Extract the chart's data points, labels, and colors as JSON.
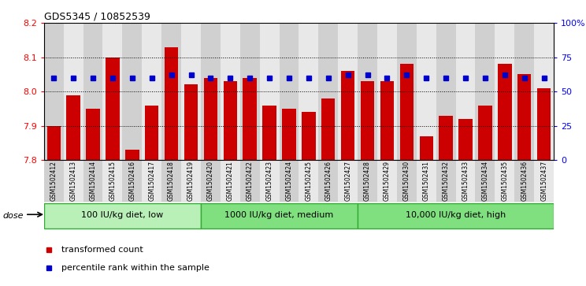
{
  "title": "GDS5345 / 10852539",
  "samples": [
    "GSM1502412",
    "GSM1502413",
    "GSM1502414",
    "GSM1502415",
    "GSM1502416",
    "GSM1502417",
    "GSM1502418",
    "GSM1502419",
    "GSM1502420",
    "GSM1502421",
    "GSM1502422",
    "GSM1502423",
    "GSM1502424",
    "GSM1502425",
    "GSM1502426",
    "GSM1502427",
    "GSM1502428",
    "GSM1502429",
    "GSM1502430",
    "GSM1502431",
    "GSM1502432",
    "GSM1502433",
    "GSM1502434",
    "GSM1502435",
    "GSM1502436",
    "GSM1502437"
  ],
  "bar_values": [
    7.9,
    7.99,
    7.95,
    8.1,
    7.83,
    7.96,
    8.13,
    8.02,
    8.04,
    8.03,
    8.04,
    7.96,
    7.95,
    7.94,
    7.98,
    8.06,
    8.03,
    8.03,
    8.08,
    7.87,
    7.93,
    7.92,
    7.96,
    8.08,
    8.05,
    8.01
  ],
  "percentile_values": [
    60,
    60,
    60,
    60,
    60,
    60,
    62,
    62,
    60,
    60,
    60,
    60,
    60,
    60,
    60,
    62,
    62,
    60,
    62,
    60,
    60,
    60,
    60,
    62,
    60,
    60
  ],
  "groups": [
    {
      "label": "100 IU/kg diet, low",
      "start": 0,
      "end": 8
    },
    {
      "label": "1000 IU/kg diet, medium",
      "start": 8,
      "end": 16
    },
    {
      "label": "10,000 IU/kg diet, high",
      "start": 16,
      "end": 26
    }
  ],
  "ylim": [
    7.8,
    8.2
  ],
  "yticks": [
    7.8,
    7.9,
    8.0,
    8.1,
    8.2
  ],
  "right_yticks": [
    0,
    25,
    50,
    75,
    100
  ],
  "right_ytick_labels": [
    "0",
    "25",
    "50",
    "75",
    "100%"
  ],
  "bar_color": "#cc0000",
  "dot_color": "#0000cc",
  "bar_width": 0.7,
  "col_bg_even": "#d0d0d0",
  "col_bg_odd": "#e8e8e8",
  "group_color_light": "#b8f0b8",
  "group_color_dark": "#80e080",
  "legend_items": [
    {
      "color": "#cc0000",
      "label": "transformed count"
    },
    {
      "color": "#0000cc",
      "label": "percentile rank within the sample"
    }
  ]
}
